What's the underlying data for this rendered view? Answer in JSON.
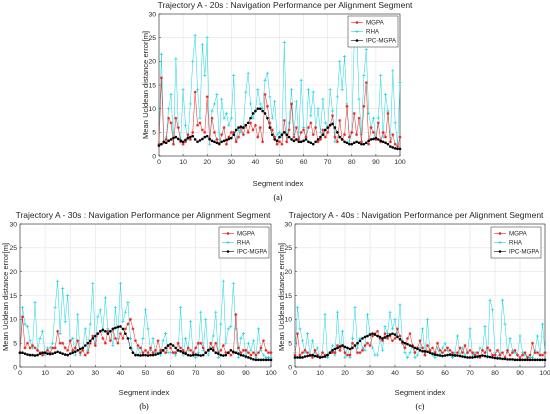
{
  "chart_data": [
    {
      "type": "line",
      "panel": "(a)",
      "title": "Trajectory A - 20s : Navigation Performance per Alignment Segment",
      "xlabel": "Segment index",
      "ylabel": "Mean Ucldean distance error[m]",
      "xlim": [
        0,
        100
      ],
      "ylim": [
        0,
        30
      ],
      "xticks": [
        0,
        10,
        20,
        30,
        40,
        50,
        60,
        70,
        80,
        90,
        100
      ],
      "yticks": [
        0,
        5,
        10,
        15,
        20,
        25,
        30
      ],
      "grid": true,
      "legend_position": "top-right",
      "series": [
        {
          "name": "MGPA",
          "color": "#e8211b",
          "marker": "star",
          "y": [
            2.5,
            16.5,
            2.8,
            3.5,
            8,
            7,
            2.5,
            8,
            6,
            3,
            2.5,
            3,
            4.5,
            3.5,
            5,
            13.5,
            6.5,
            7,
            5.5,
            5,
            12.5,
            3.5,
            8,
            5,
            3.5,
            2.5,
            4.5,
            6,
            2.5,
            4,
            5,
            5,
            3,
            4,
            6,
            4.5,
            6.5,
            5,
            7,
            5.5,
            6.5,
            4,
            6,
            3,
            13,
            10.5,
            7,
            5.5,
            4,
            2.5,
            3,
            2.5,
            7.5,
            3,
            5.5,
            11,
            4,
            6,
            3.5,
            5,
            5.5,
            4,
            6,
            7,
            4.5,
            6,
            3,
            3.5,
            5.5,
            4,
            5,
            6.5,
            8.5,
            4,
            3,
            7.5,
            3.5,
            4.5,
            10.5,
            4,
            5,
            9,
            4.5,
            8,
            3,
            10.5,
            15.5,
            2.5,
            6,
            5,
            3.5,
            7,
            3,
            5,
            4,
            9,
            3,
            4.5,
            2.5,
            2,
            4
          ]
        },
        {
          "name": "RHA",
          "color": "#16d6e0",
          "marker": "plus",
          "y": [
            3,
            21.5,
            3,
            4,
            10,
            13,
            3,
            20.5,
            6,
            3.5,
            14,
            6.5,
            3.5,
            11,
            20,
            25.5,
            14,
            8,
            23.5,
            17,
            25,
            2.5,
            9.5,
            11,
            13,
            3.5,
            12,
            8,
            9,
            6.5,
            8,
            17,
            3.5,
            5.5,
            5,
            6,
            13.5,
            17.5,
            11,
            8,
            9.5,
            14,
            11,
            10,
            16,
            17.5,
            12.5,
            8,
            11.5,
            4.5,
            5,
            4,
            24,
            3,
            7,
            14,
            4.5,
            11.5,
            4,
            16,
            6,
            3.5,
            14,
            8.5,
            13.5,
            6,
            10,
            5,
            12,
            7,
            6,
            14,
            9.5,
            3,
            12.5,
            20,
            14,
            21,
            11,
            3,
            5,
            24,
            27.5,
            12,
            4.5,
            17,
            22.5,
            9,
            6,
            8,
            3.5,
            8,
            17,
            4,
            13,
            9.5,
            3,
            18,
            7,
            2.5,
            15.5
          ]
        },
        {
          "name": "IPC-MGPA",
          "color": "#000000",
          "marker": "dot",
          "y": [
            2.2,
            2.5,
            3,
            2.8,
            3.2,
            3.5,
            3.8,
            4,
            3.6,
            3.2,
            3,
            3.4,
            3.8,
            4,
            4.2,
            3.5,
            3,
            3.3,
            3.6,
            4,
            4.2,
            3.6,
            3.2,
            3,
            2.8,
            2.6,
            3,
            3.2,
            3.4,
            3.6,
            3.8,
            4.5,
            5.5,
            6,
            6.2,
            6,
            6.5,
            7,
            8,
            9,
            9.5,
            10,
            10,
            9.5,
            9,
            8,
            6,
            4.5,
            3.5,
            3.2,
            4,
            4.5,
            5,
            4.5,
            4,
            3.5,
            3.2,
            3.5,
            3,
            3,
            3.2,
            3.5,
            3,
            2.8,
            2.5,
            3,
            3.5,
            4,
            4.5,
            5.5,
            6,
            6.5,
            6.8,
            6,
            5,
            4,
            3.5,
            3,
            2.8,
            2.5,
            2.5,
            2.8,
            3,
            2.8,
            2.5,
            2.5,
            2.8,
            3.2,
            3.5,
            3.6,
            3.8,
            3.5,
            3.2,
            3,
            2.8,
            2.5,
            2,
            1.8,
            1.6,
            1.5,
            1.5
          ]
        }
      ]
    },
    {
      "type": "line",
      "panel": "(b)",
      "title": "Trajectory A - 30s : Navigation Performance per Alignment Segment",
      "xlabel": "Segment index",
      "ylabel": "Mean Ucldean distance error[m]",
      "xlim": [
        0,
        100
      ],
      "ylim": [
        0,
        30
      ],
      "xticks": [
        0,
        10,
        20,
        30,
        40,
        50,
        60,
        70,
        80,
        90,
        100
      ],
      "yticks": [
        0,
        5,
        10,
        15,
        20,
        25,
        30
      ],
      "grid": true,
      "legend_position": "top-right",
      "series": [
        {
          "name": "MGPA",
          "color": "#e8211b",
          "marker": "star",
          "y": [
            3,
            10.5,
            4,
            5,
            4,
            4.5,
            4,
            3.5,
            3,
            2.5,
            3,
            3.5,
            3,
            4,
            4,
            7.5,
            5,
            5,
            4,
            3.5,
            5.5,
            3.5,
            4,
            5.5,
            3,
            3.5,
            2.5,
            3,
            5,
            6.5,
            4.5,
            7,
            7.5,
            6,
            5,
            7.5,
            5.5,
            8,
            6,
            5,
            7,
            6,
            8,
            9,
            10,
            8,
            5.5,
            4.5,
            4,
            3,
            3.5,
            3,
            4,
            3,
            3.5,
            5.5,
            3.5,
            3.5,
            3,
            4.5,
            4,
            3,
            3,
            5,
            4,
            3.5,
            3,
            4,
            3.5,
            3,
            4,
            5,
            5,
            4,
            3,
            3.5,
            5,
            4,
            5,
            3,
            3.5,
            4.5,
            3,
            3,
            2.5,
            3,
            11,
            4,
            3,
            3.5,
            3.5,
            3,
            2.5,
            3,
            2.5,
            3,
            4,
            5.5,
            3.5,
            3,
            3
          ]
        },
        {
          "name": "RHA",
          "color": "#16d6e0",
          "marker": "plus",
          "y": [
            3,
            12.5,
            9,
            8.5,
            5.5,
            4,
            13.5,
            3.5,
            6,
            7.5,
            2.5,
            4,
            4,
            5,
            12.5,
            18,
            7,
            16.5,
            9.5,
            15,
            5.5,
            6,
            2.5,
            11,
            2.5,
            4,
            8,
            3.5,
            9,
            17.5,
            5,
            10.5,
            12,
            7.5,
            14.5,
            8,
            7.5,
            4.5,
            12.5,
            6,
            17.5,
            9.5,
            11.5,
            13.5,
            6,
            3,
            2.5,
            4,
            2.5,
            6,
            12,
            8,
            3.5,
            6,
            3,
            3,
            2.5,
            5.5,
            7,
            3,
            3,
            3,
            2.5,
            3.5,
            12.5,
            2.5,
            6,
            3.5,
            9.5,
            2.5,
            2,
            3,
            11.5,
            3.5,
            10,
            2.5,
            4,
            6.5,
            11.5,
            2,
            9,
            18,
            5,
            8,
            8.5,
            17.5,
            8,
            2,
            6,
            7,
            2,
            5,
            3.5,
            5.5,
            2,
            8,
            3.5,
            2.5,
            2,
            2,
            2
          ]
        },
        {
          "name": "IPC-MGPA",
          "color": "#000000",
          "marker": "dot",
          "y": [
            3,
            3,
            2.8,
            2.6,
            2.5,
            2.5,
            2.4,
            2.5,
            2.8,
            3,
            3,
            2.8,
            2.7,
            2.8,
            3,
            3.2,
            3,
            2.8,
            2.6,
            2.5,
            2.8,
            3,
            3.2,
            3.5,
            3.8,
            4,
            4.5,
            5,
            5.5,
            6,
            6.5,
            7,
            7.5,
            7.8,
            7.5,
            7,
            7.5,
            8,
            8.2,
            8.4,
            8.5,
            8,
            7,
            6,
            4,
            3,
            2.5,
            2.5,
            2.4,
            2.5,
            2.5,
            2.4,
            2.5,
            2.5,
            2.6,
            2.8,
            3,
            3.5,
            4,
            4.5,
            4.8,
            4.5,
            4,
            3.5,
            3.3,
            3,
            2.8,
            2.5,
            2.4,
            2.5,
            2.6,
            2.5,
            2.4,
            2.5,
            3,
            3.5,
            3.8,
            3.5,
            3,
            2.8,
            2.5,
            2.4,
            2.5,
            3,
            3.5,
            3.2,
            3,
            2.8,
            2.5,
            2.4,
            2.2,
            2,
            1.8,
            1.6,
            1.5,
            1.5,
            1.5,
            1.5,
            1.5,
            1.5,
            1.5
          ]
        }
      ]
    },
    {
      "type": "line",
      "panel": "(c)",
      "title": "Trajectory A - 40s : Navigation Performance per Alignment Segment",
      "xlabel": "Segment index",
      "ylabel": "Mean Ucldean distance error[m]",
      "xlim": [
        0,
        100
      ],
      "ylim": [
        0,
        30
      ],
      "xticks": [
        0,
        10,
        20,
        30,
        40,
        50,
        60,
        70,
        80,
        90,
        100
      ],
      "yticks": [
        0,
        5,
        10,
        15,
        20,
        25,
        30
      ],
      "grid": true,
      "legend_position": "top-right",
      "series": [
        {
          "name": "MGPA",
          "color": "#e8211b",
          "marker": "star",
          "y": [
            2.5,
            7,
            2.5,
            3,
            3.5,
            3,
            2.5,
            2,
            3.5,
            2.5,
            2,
            3,
            2.5,
            2.5,
            3,
            3,
            3,
            4.5,
            3.5,
            4.5,
            3,
            2.5,
            2.5,
            5,
            4.5,
            3,
            3,
            3.5,
            4.5,
            5,
            4.5,
            6.5,
            7,
            7.5,
            6,
            5.5,
            7,
            6,
            6.5,
            5.5,
            6,
            8,
            6.5,
            5,
            4,
            6,
            7,
            4.5,
            3,
            4,
            5.5,
            4,
            2.5,
            4.5,
            3.5,
            4,
            3,
            5,
            3.5,
            3,
            3.5,
            4,
            3.5,
            3,
            2.5,
            3,
            4,
            3,
            4.5,
            3,
            3.5,
            3,
            2.5,
            3,
            2,
            3.5,
            3,
            4,
            3.5,
            2.5,
            2.5,
            3.5,
            2.5,
            3,
            2,
            3.5,
            2.5,
            3,
            3.5,
            2.5,
            2,
            2.5,
            3,
            2,
            2.5,
            5,
            3,
            3,
            2.5,
            2.5,
            3
          ]
        },
        {
          "name": "RHA",
          "color": "#16d6e0",
          "marker": "plus",
          "y": [
            3,
            12.5,
            8,
            5.5,
            3,
            7,
            2.5,
            5.5,
            3,
            4,
            2,
            3,
            11,
            2,
            3,
            4.5,
            2.5,
            11.5,
            3.5,
            7.5,
            2,
            4,
            2,
            6,
            12.5,
            4,
            6,
            4,
            3.5,
            11,
            7,
            4,
            2.5,
            2.5,
            6,
            3.5,
            8.5,
            7,
            11.5,
            8,
            10,
            6.5,
            13,
            5,
            3,
            2,
            3,
            4.5,
            2,
            2.5,
            4,
            8,
            2.5,
            10,
            3,
            2.5,
            2,
            4,
            2.5,
            4,
            5,
            3.5,
            2.5,
            2,
            3,
            6.5,
            2.5,
            4,
            2.5,
            3,
            8,
            2.5,
            3,
            2,
            4,
            3.5,
            8.5,
            2,
            14,
            12,
            3,
            2,
            3,
            14,
            9,
            3,
            6,
            3.5,
            3,
            2.5,
            6.5,
            3,
            2.5,
            2,
            2,
            2,
            3.5,
            6.5,
            2.5,
            9,
            3
          ]
        },
        {
          "name": "IPC-MGPA",
          "color": "#000000",
          "marker": "dot",
          "y": [
            2,
            2,
            2,
            2,
            2.2,
            2.3,
            2.4,
            2.5,
            2.3,
            2.2,
            2,
            2.1,
            2.2,
            2.5,
            3,
            3.5,
            3.8,
            4,
            4.3,
            4.5,
            4.2,
            4,
            3.8,
            4,
            4.5,
            5,
            5.5,
            6,
            6.3,
            6.5,
            6.8,
            7,
            6.8,
            6.5,
            6.3,
            6,
            6.2,
            6.5,
            6.8,
            7,
            6.8,
            6.3,
            5.8,
            5.3,
            5,
            4.8,
            4.5,
            4.3,
            4,
            3.8,
            3.5,
            3.3,
            3.3,
            3.2,
            3,
            2.8,
            2.6,
            2.5,
            2.4,
            2.3,
            2.4,
            2.5,
            2.6,
            2.5,
            2.4,
            2.4,
            2.3,
            2.2,
            2.1,
            2,
            2,
            2,
            2.1,
            2.2,
            2.3,
            2.4,
            2.3,
            2.2,
            2.1,
            2,
            1.9,
            1.8,
            1.8,
            1.7,
            1.7,
            1.6,
            1.6,
            1.6,
            1.5,
            1.5,
            1.5,
            1.5,
            1.5,
            1.5,
            1.5,
            1.5,
            1.5,
            1.5,
            1.5,
            1.5,
            1.5
          ]
        }
      ]
    }
  ]
}
